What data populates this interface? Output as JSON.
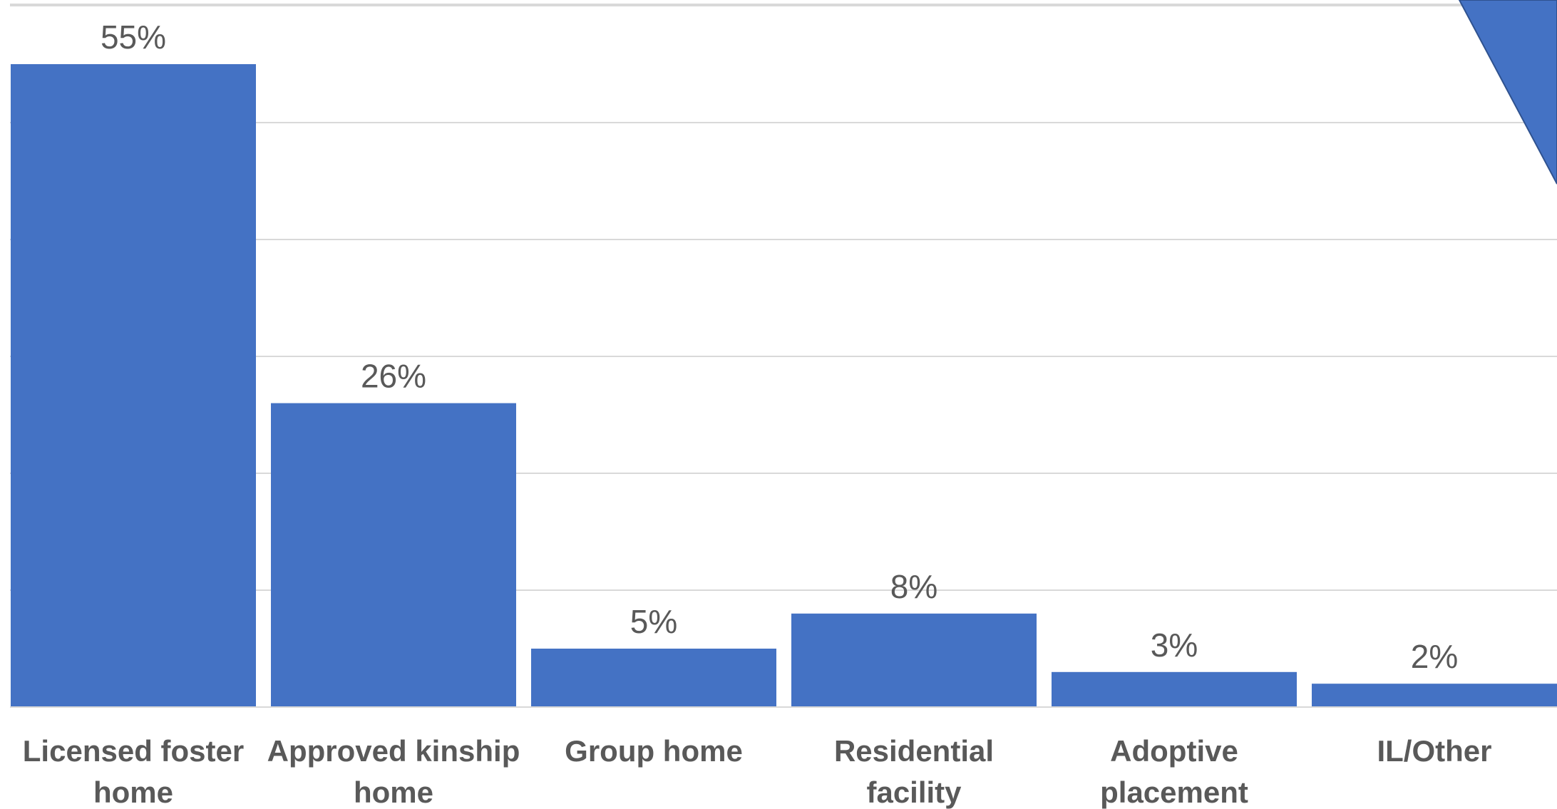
{
  "chart_data": {
    "type": "bar",
    "title": "",
    "xlabel": "",
    "ylabel": "",
    "categories": [
      [
        "Licensed foster",
        "home"
      ],
      [
        "Approved kinship",
        "home"
      ],
      [
        "Group home"
      ],
      [
        "Residential",
        "facility"
      ],
      [
        "Adoptive",
        "placement"
      ],
      [
        "IL/Other"
      ]
    ],
    "values": [
      55,
      26,
      5,
      8,
      3,
      2
    ],
    "labels": [
      "55%",
      "26%",
      "5%",
      "8%",
      "3%",
      "2%"
    ],
    "ylim": [
      0,
      60
    ],
    "grid": true,
    "bar_color": "#4472C4",
    "gridline_color": "#D9D9D9",
    "label_color": "#595959"
  }
}
